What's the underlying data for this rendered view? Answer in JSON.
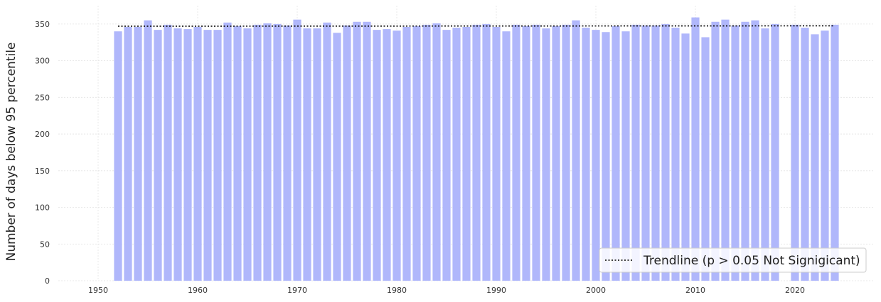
{
  "chart_data": {
    "type": "bar",
    "title": "",
    "xlabel": "",
    "ylabel": "Number of days below 95 percentile",
    "xlim": [
      1946,
      2028
    ],
    "ylim": [
      0,
      375
    ],
    "x_ticks": [
      1950,
      1960,
      1970,
      1980,
      1990,
      2000,
      2010,
      2020
    ],
    "y_ticks": [
      0,
      50,
      100,
      150,
      200,
      250,
      300,
      350
    ],
    "grid": true,
    "legend_position": "bottom-right",
    "bar_color": "#b0b7fb",
    "trend_color": "#000000",
    "series": [
      {
        "x": [
          1952,
          1953,
          1954,
          1955,
          1956,
          1957,
          1958,
          1959,
          1960,
          1961,
          1962,
          1963,
          1964,
          1965,
          1966,
          1967,
          1968,
          1969,
          1970,
          1971,
          1972,
          1973,
          1974,
          1975,
          1976,
          1977,
          1978,
          1979,
          1980,
          1981,
          1982,
          1983,
          1984,
          1985,
          1986,
          1987,
          1988,
          1989,
          1990,
          1991,
          1992,
          1993,
          1994,
          1995,
          1996,
          1997,
          1998,
          1999,
          2000,
          2001,
          2002,
          2003,
          2004,
          2005,
          2006,
          2007,
          2008,
          2009,
          2010,
          2011,
          2012,
          2013,
          2014,
          2015,
          2016,
          2017,
          2018,
          2020,
          2021,
          2022,
          2023,
          2024
        ],
        "values": [
          340,
          346,
          346,
          355,
          342,
          349,
          344,
          343,
          346,
          342,
          342,
          352,
          347,
          344,
          349,
          351,
          350,
          348,
          356,
          344,
          344,
          352,
          338,
          348,
          353,
          353,
          342,
          343,
          341,
          346,
          347,
          349,
          351,
          342,
          345,
          346,
          349,
          350,
          346,
          340,
          349,
          347,
          349,
          344,
          347,
          349,
          355,
          345,
          342,
          339,
          347,
          340,
          349,
          348,
          348,
          350,
          345,
          337,
          359,
          332,
          353,
          356,
          348,
          353,
          355,
          344,
          350,
          349,
          345,
          336,
          341,
          349
        ]
      }
    ],
    "trendline": {
      "label": "Trendline (p > 0.05 Not Signigicant)",
      "x": [
        1952,
        2024
      ],
      "y": [
        347,
        347.5
      ]
    }
  }
}
